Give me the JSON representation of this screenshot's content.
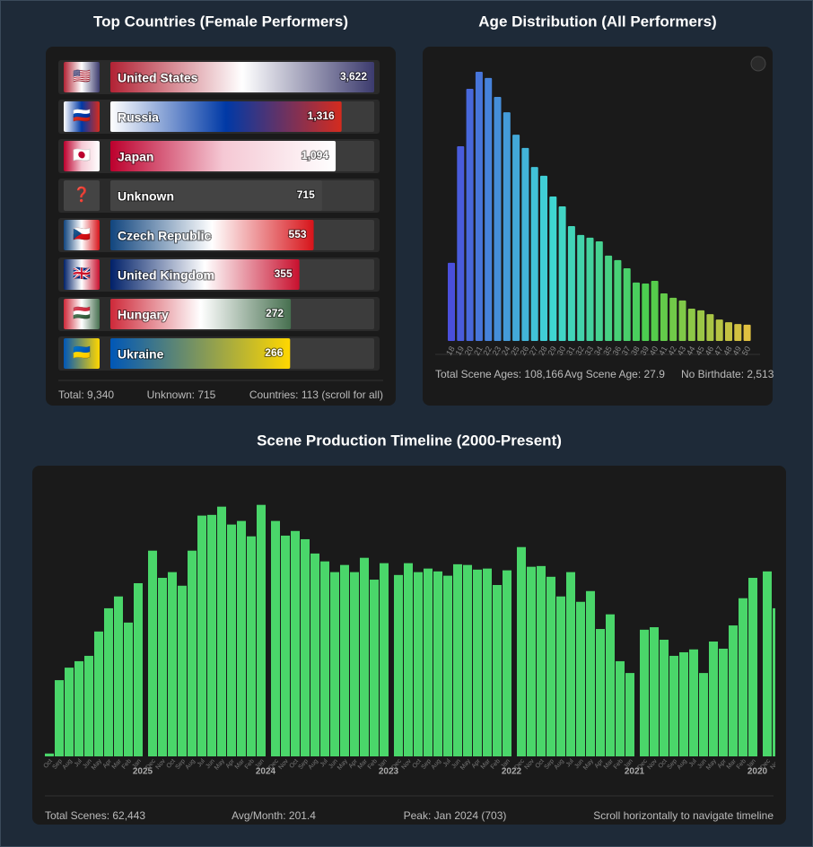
{
  "chart_data": [
    {
      "type": "hbar",
      "title": "Top Countries (Female Performers)",
      "categories": [
        "United States",
        "Russia",
        "Japan",
        "Unknown",
        "Czech Republic",
        "United Kingdom",
        "Hungary",
        "Ukraine"
      ],
      "flags": [
        "🇺🇸",
        "🇷🇺",
        "🇯🇵",
        "❓",
        "🇨🇿",
        "🇬🇧",
        "🇭🇺",
        "🇺🇦"
      ],
      "values": [
        3622,
        1316,
        1094,
        715,
        553,
        355,
        272,
        266
      ],
      "value_labels": [
        "3,622",
        "1,316",
        "1,094",
        "715",
        "553",
        "355",
        "272",
        "266"
      ],
      "colors": [
        [
          "#b22234",
          "#ffffff",
          "#3c3b6e"
        ],
        [
          "#ffffff",
          "#0039a6",
          "#d52b1e"
        ],
        [
          "#bc002d",
          "#f5c8d4",
          "#ffffff"
        ],
        [
          "#444444",
          "#444444"
        ],
        [
          "#11457e",
          "#ffffff",
          "#d7141a"
        ],
        [
          "#012169",
          "#ffffff",
          "#c8102e"
        ],
        [
          "#ce2939",
          "#ffffff",
          "#477050"
        ],
        [
          "#0057b7",
          "#ffd700"
        ]
      ],
      "log_scale": true,
      "xlim": [
        1,
        3622
      ],
      "footer": [
        "Total: 9,340",
        "Unknown: 715",
        "Countries: 113 (scroll for all)"
      ]
    },
    {
      "type": "bar",
      "title": "Age Distribution (All Performers)",
      "categories": [
        "18",
        "19",
        "20",
        "21",
        "22",
        "23",
        "24",
        "25",
        "26",
        "27",
        "28",
        "29",
        "30",
        "31",
        "32",
        "33",
        "34",
        "35",
        "36",
        "37",
        "38",
        "39",
        "40",
        "41",
        "42",
        "43",
        "44",
        "45",
        "46",
        "47",
        "48",
        "49",
        "50"
      ],
      "values": [
        2300,
        5730,
        7420,
        7920,
        7740,
        7180,
        6730,
        6070,
        5680,
        5120,
        4860,
        4250,
        3960,
        3380,
        3120,
        3040,
        2930,
        2510,
        2380,
        2140,
        1720,
        1690,
        1770,
        1400,
        1270,
        1190,
        950,
        900,
        790,
        630,
        550,
        500,
        480
      ],
      "color_stops": [
        "#4a4fdc",
        "#3fd6d6",
        "#4ccd4c",
        "#e0c040"
      ],
      "ylim": [
        0,
        8000
      ],
      "footer": [
        "Total Scene Ages: 108,166",
        "Avg Scene Age: 27.9",
        "No Birthdate: 2,513"
      ]
    },
    {
      "type": "timeline",
      "title": "Scene Production Timeline (2000-Present)",
      "categories": [
        "Oct",
        "Sep",
        "Aug",
        "Jul",
        "Jun",
        "May",
        "Apr",
        "Mar",
        "Feb",
        "Jan",
        "Dec",
        "Nov",
        "Oct",
        "Sep",
        "Aug",
        "Jul",
        "Jun",
        "May",
        "Apr",
        "Mar",
        "Feb",
        "Jan",
        "Dec",
        "Nov",
        "Oct",
        "Sep",
        "Aug",
        "Jul",
        "Jun",
        "May",
        "Apr",
        "Mar",
        "Feb",
        "Jan",
        "Dec",
        "Nov",
        "Oct",
        "Sep",
        "Aug",
        "Jul",
        "Jun",
        "May",
        "Apr",
        "Mar",
        "Feb",
        "Jan",
        "Dec",
        "Nov",
        "Oct",
        "Sep",
        "Aug",
        "Jul",
        "Jun",
        "May",
        "Apr",
        "Mar",
        "Feb",
        "Jan",
        "Dec",
        "Nov",
        "Oct",
        "Sep",
        "Aug",
        "Jul",
        "Jun",
        "May",
        "Apr",
        "Mar",
        "Feb",
        "Jan",
        "Dec",
        "Nov"
      ],
      "year_labels": [
        "2025",
        "2024",
        "2023",
        "2022",
        "2021",
        "2020"
      ],
      "values": [
        8,
        213,
        248,
        266,
        281,
        349,
        414,
        447,
        374,
        484,
        575,
        499,
        515,
        477,
        575,
        673,
        675,
        698,
        648,
        658,
        615,
        703,
        658,
        617,
        630,
        607,
        567,
        545,
        515,
        535,
        515,
        555,
        494,
        540,
        507,
        540,
        515,
        525,
        517,
        505,
        537,
        535,
        522,
        525,
        479,
        520,
        585,
        530,
        532,
        502,
        447,
        515,
        432,
        462,
        356,
        397,
        266,
        233,
        354,
        361,
        326,
        281,
        291,
        299,
        233,
        321,
        301,
        366,
        442,
        499,
        517,
        414
      ],
      "color": "#4ad66a",
      "ylim": [
        0,
        800
      ],
      "footer": [
        "Total Scenes: 62,443",
        "Avg/Month: 201.4",
        "Peak: Jan 2024 (703)",
        "Scroll horizontally to navigate timeline"
      ]
    }
  ]
}
